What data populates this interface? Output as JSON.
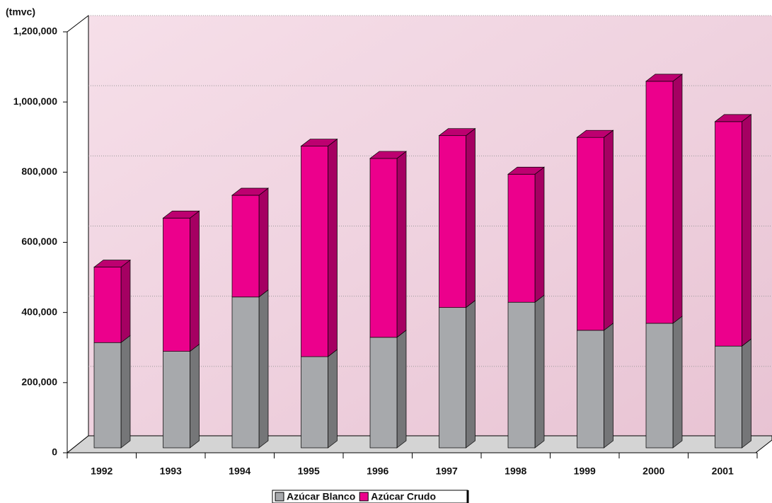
{
  "chart_data": {
    "type": "bar3d_stacked",
    "unit_label": "(tmvc)",
    "categories": [
      "1992",
      "1993",
      "1994",
      "1995",
      "1996",
      "1997",
      "1998",
      "1999",
      "2000",
      "2001"
    ],
    "series": [
      {
        "name": "Azúcar Blanco",
        "color": "#a7a9ac",
        "values": [
          300000,
          275000,
          430000,
          260000,
          315000,
          400000,
          415000,
          335000,
          355000,
          290000
        ]
      },
      {
        "name": "Azúcar Crudo",
        "color": "#ec008c",
        "values": [
          215000,
          380000,
          290000,
          600000,
          510000,
          490000,
          365000,
          550000,
          690000,
          640000
        ]
      }
    ],
    "ylim": [
      0,
      1200000
    ],
    "yticks": [
      0,
      {
        "value": 200000,
        "label": "200,000"
      },
      {
        "value": 400000,
        "label": "400,000"
      },
      {
        "value": 600000,
        "label": "600,000"
      },
      {
        "value": 800000,
        "label": "800,000"
      },
      {
        "value": 1000000,
        "label": "1,000,000"
      },
      {
        "value": 1200000,
        "label": "1,200,000"
      }
    ],
    "grid": true
  }
}
